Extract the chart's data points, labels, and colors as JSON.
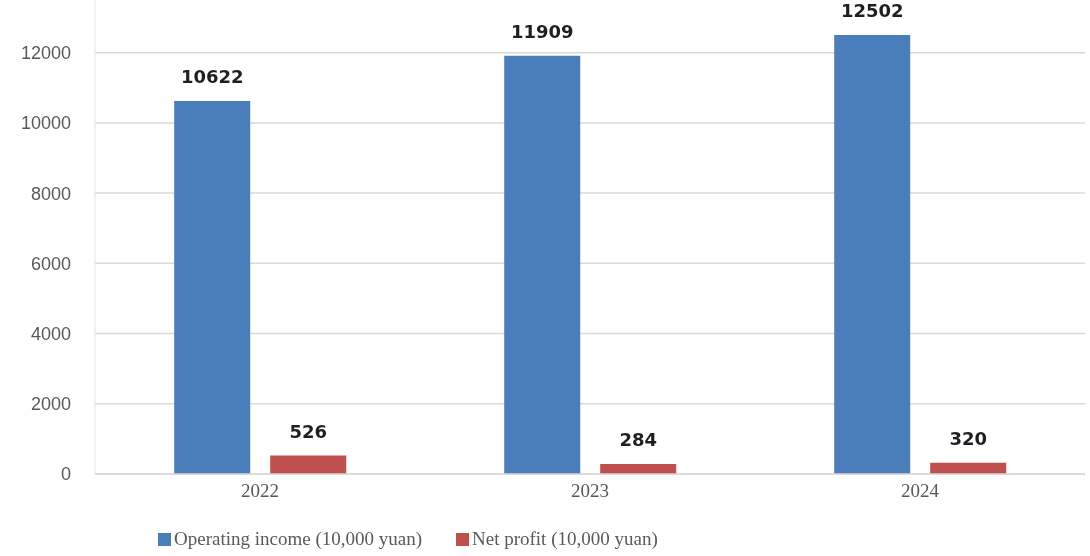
{
  "chart_data": {
    "type": "bar",
    "categories": [
      "2022",
      "2023",
      "2024"
    ],
    "series": [
      {
        "name": "Operating income (10,000 yuan)",
        "color": "#4a7ebb",
        "values": [
          10622,
          11909,
          12502
        ]
      },
      {
        "name": "Net profit (10,000 yuan)",
        "color": "#c0504d",
        "values": [
          526,
          284,
          320
        ]
      }
    ],
    "ylim": [
      0,
      13500
    ],
    "yticks": [
      0,
      2000,
      4000,
      6000,
      8000,
      10000,
      12000
    ],
    "grid": "y",
    "legend": "bottom",
    "data_labels": true
  }
}
